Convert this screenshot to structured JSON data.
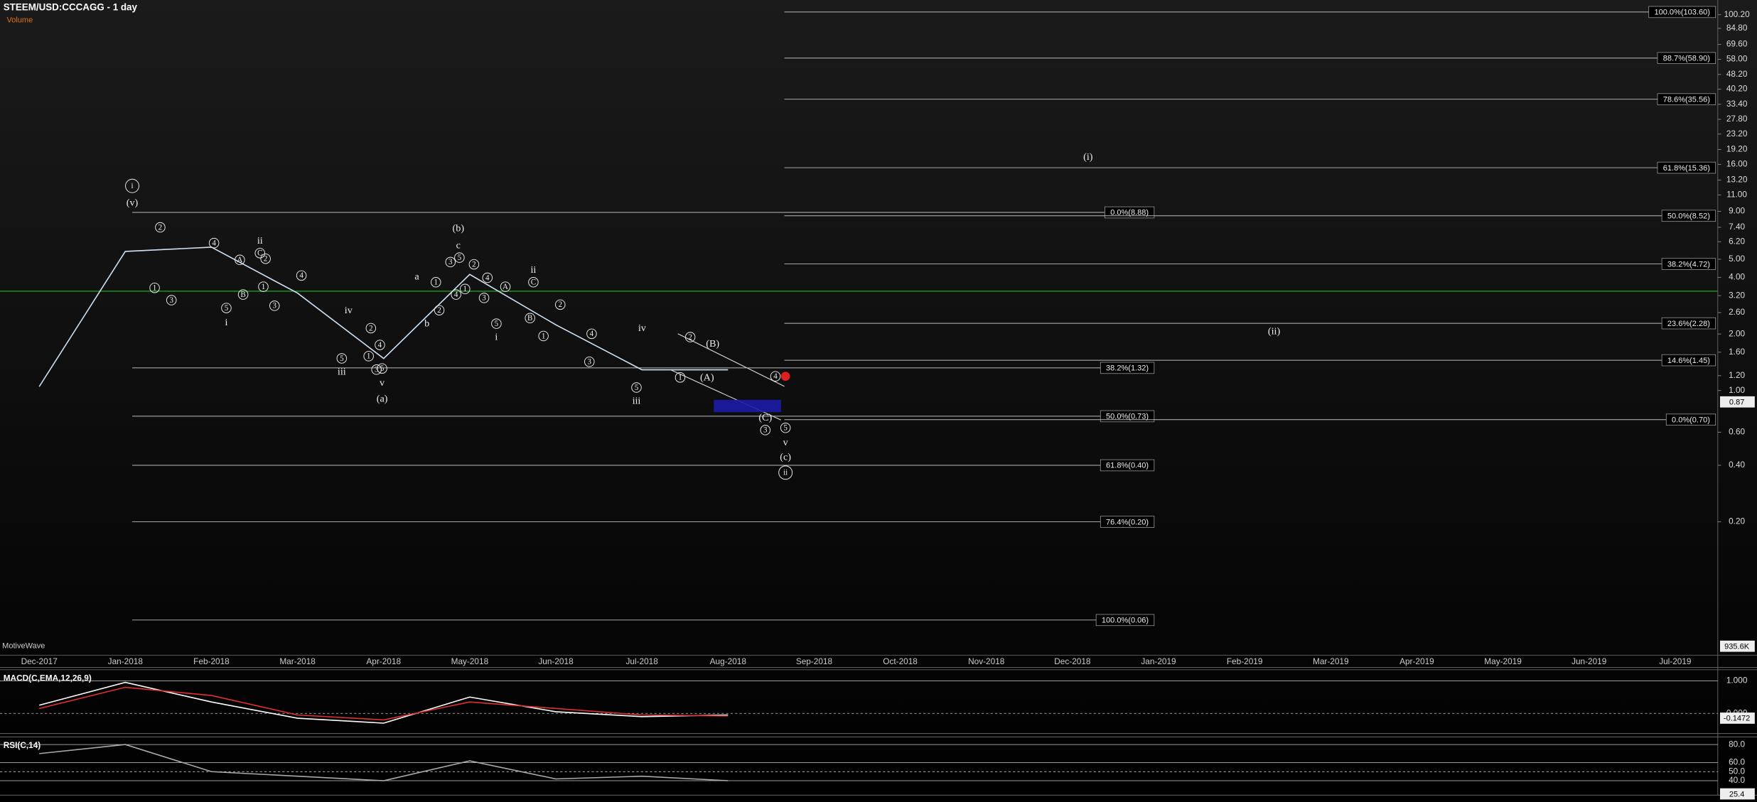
{
  "chart_data": [
    {
      "type": "line",
      "title": "STEEM/USD:CCCAGG - 1 day",
      "subtitle": "Volume",
      "watermark": "MotiveWave",
      "categories": [
        "Dec-2017",
        "Jan-2018",
        "Feb-2018",
        "Mar-2018",
        "Apr-2018",
        "May-2018",
        "Jun-2018",
        "Jul-2018",
        "Aug-2018",
        "Sep-2018",
        "Oct-2018",
        "Nov-2018",
        "Dec-2018",
        "Jan-2019",
        "Feb-2019",
        "Mar-2019",
        "Apr-2019",
        "May-2019",
        "Jun-2019",
        "Jul-2019"
      ],
      "values": [
        1.05,
        5.5,
        5.8,
        3.3,
        1.48,
        4.15,
        2.24,
        1.29,
        1.29,
        null,
        null,
        null,
        null,
        null,
        null,
        null,
        null,
        null,
        null,
        null
      ],
      "color": "#cfe3f5",
      "log_scale": true,
      "ylim": [
        0.039,
        120
      ],
      "yticks": [
        {
          "value": 100.2,
          "label": "100.20"
        },
        {
          "value": 84.8,
          "label": "84.80"
        },
        {
          "value": 69.6,
          "label": "69.60"
        },
        {
          "value": 58,
          "label": "58.00"
        },
        {
          "value": 48.2,
          "label": "48.20"
        },
        {
          "value": 40.2,
          "label": "40.20"
        },
        {
          "value": 33.4,
          "label": "33.40"
        },
        {
          "value": 27.8,
          "label": "27.80"
        },
        {
          "value": 23.2,
          "label": "23.20"
        },
        {
          "value": 19.2,
          "label": "19.20"
        },
        {
          "value": 16,
          "label": "16.00"
        },
        {
          "value": 13.2,
          "label": "13.20"
        },
        {
          "value": 11,
          "label": "11.00"
        },
        {
          "value": 9,
          "label": "9.00"
        },
        {
          "value": 7.4,
          "label": "7.40"
        },
        {
          "value": 6.2,
          "label": "6.20"
        },
        {
          "value": 5,
          "label": "5.00"
        },
        {
          "value": 4,
          "label": "4.00"
        },
        {
          "value": 3.2,
          "label": "3.20"
        },
        {
          "value": 2.6,
          "label": "2.60"
        },
        {
          "value": 2,
          "label": "2.00"
        },
        {
          "value": 1.6,
          "label": "1.60"
        },
        {
          "value": 1.2,
          "label": "1.20"
        },
        {
          "value": 1,
          "label": "1.00"
        },
        {
          "value": 0.6,
          "label": "0.60"
        },
        {
          "value": 0.4,
          "label": "0.40"
        },
        {
          "value": 0.2,
          "label": "0.20"
        }
      ],
      "last_value": 0.87,
      "volume_axis_label": "935.6K",
      "horizontal_line": {
        "value": 3.38,
        "color": "#1e9e1e"
      },
      "fib_left": [
        {
          "value": 8.88,
          "label": "0.0%(8.88)"
        },
        {
          "value": 1.32,
          "label": "38.2%(1.32)"
        },
        {
          "value": 0.73,
          "label": "50.0%(0.73)"
        },
        {
          "value": 0.4,
          "label": "61.8%(0.40)"
        },
        {
          "value": 0.2,
          "label": "76.4%(0.20)"
        },
        {
          "value": 0.06,
          "label": "100.0%(0.06)"
        }
      ],
      "fib_right": [
        {
          "value": 103.6,
          "label": "100.0%(103.60)"
        },
        {
          "value": 58.9,
          "label": "88.7%(58.90)"
        },
        {
          "value": 35.56,
          "label": "78.6%(35.56)"
        },
        {
          "value": 15.36,
          "label": "61.8%(15.36)"
        },
        {
          "value": 8.52,
          "label": "50.0%(8.52)"
        },
        {
          "value": 4.72,
          "label": "38.2%(4.72)"
        },
        {
          "value": 2.28,
          "label": "23.6%(2.28)"
        },
        {
          "value": 1.45,
          "label": "14.6%(1.45)"
        },
        {
          "value": 0.7,
          "label": "0.0%(0.70)"
        }
      ],
      "annotations": [
        "i",
        "(v)",
        "2",
        "1",
        "3",
        "4",
        "5",
        "i",
        "ii",
        "A",
        "C",
        "2",
        "B",
        "1",
        "3",
        "4",
        "iv",
        "2",
        "4",
        "1",
        "3",
        "5",
        "5",
        "iii",
        "v",
        "(a)",
        "a",
        "b",
        "1",
        "2",
        "(b)",
        "c",
        "3",
        "5",
        "4",
        "1",
        "2",
        "4",
        "3",
        "5",
        "i",
        "A",
        "ii",
        "C",
        "B",
        "2",
        "1",
        "4",
        "3",
        "iv",
        "5",
        "iii",
        "2",
        "(B)",
        "1",
        "(A)",
        "4",
        "(C)",
        "3",
        "5",
        "v",
        "(c)",
        "ii",
        "(i)",
        "(ii)"
      ]
    },
    {
      "type": "line",
      "title": "MACD(C,EMA,12,26,9)",
      "ylim": [
        -0.62,
        1.34
      ],
      "yticks": [
        {
          "value": 1,
          "label": "1.000"
        },
        {
          "value": 0,
          "label": "0.000"
        }
      ],
      "series": [
        {
          "color": "#ffffff",
          "values": [
            0.25,
            0.95,
            0.35,
            -0.15,
            -0.3,
            0.5,
            0.05,
            -0.1,
            -0.05,
            null,
            null,
            null,
            null,
            null,
            null,
            null,
            null,
            null,
            null,
            null
          ]
        },
        {
          "color": "#e03030",
          "values": [
            0.15,
            0.8,
            0.55,
            -0.05,
            -0.2,
            0.35,
            0.15,
            -0.05,
            -0.08,
            null,
            null,
            null,
            null,
            null,
            null,
            null,
            null,
            null,
            null,
            null
          ]
        }
      ],
      "last_value": -0.1472
    },
    {
      "type": "line",
      "title": "RSI(C,14)",
      "ylim": [
        24,
        86
      ],
      "yticks": [
        {
          "value": 80,
          "label": "80.0"
        },
        {
          "value": 60,
          "label": "60.0"
        },
        {
          "value": 50,
          "label": "50.0"
        },
        {
          "value": 40,
          "label": "40.0"
        }
      ],
      "series": [
        {
          "color": "#aaaaaa",
          "values": [
            70,
            80,
            50,
            45,
            40,
            62,
            42,
            45,
            40,
            null,
            null,
            null,
            null,
            null,
            null,
            null,
            null,
            null,
            null,
            null
          ]
        }
      ],
      "last_value": 25.4
    }
  ]
}
